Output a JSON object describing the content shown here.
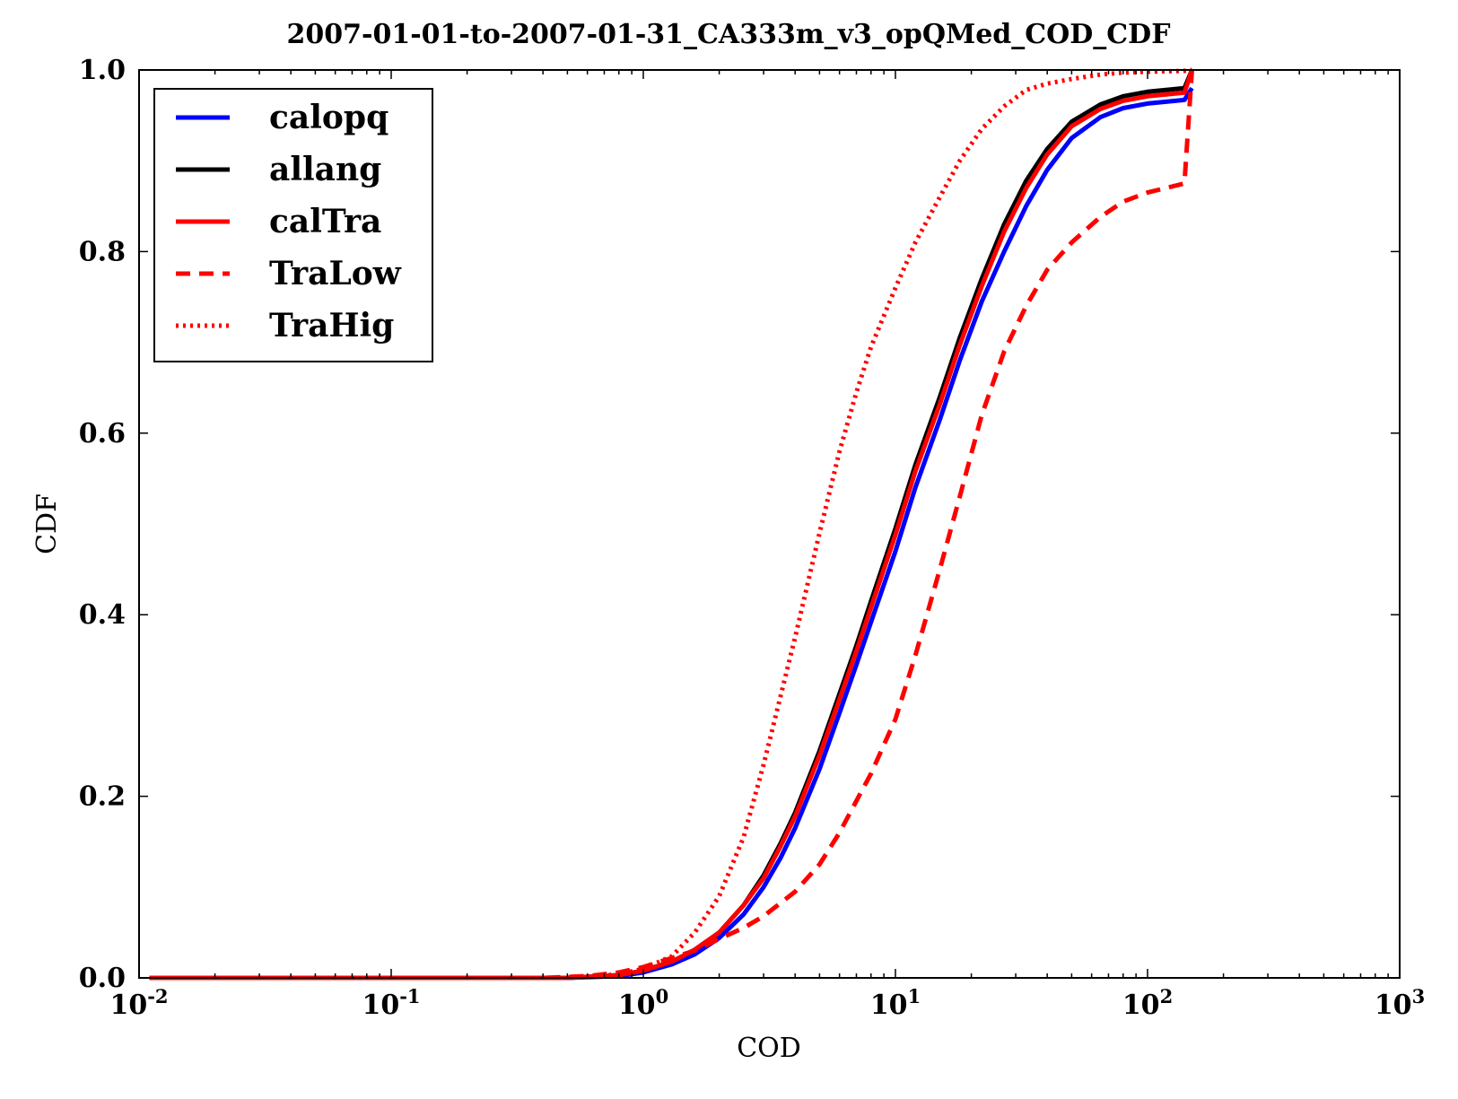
{
  "chart_data": {
    "type": "line",
    "title": "2007-01-01-to-2007-01-31_CA333m_v3_opQMed_COD_CDF",
    "xlabel": "COD",
    "ylabel": "CDF",
    "xscale": "log",
    "xlim": [
      0.01,
      1000
    ],
    "ylim": [
      0.0,
      1.0
    ],
    "x_ticks": [
      {
        "base": "10",
        "exp": "-2",
        "value": 0.01
      },
      {
        "base": "10",
        "exp": "-1",
        "value": 0.1
      },
      {
        "base": "10",
        "exp": "0",
        "value": 1
      },
      {
        "base": "10",
        "exp": "1",
        "value": 10
      },
      {
        "base": "10",
        "exp": "2",
        "value": 100
      },
      {
        "base": "10",
        "exp": "3",
        "value": 1000
      }
    ],
    "y_ticks": [
      "0.0",
      "0.2",
      "0.4",
      "0.6",
      "0.8",
      "1.0"
    ],
    "grid": false,
    "legend_position": "top-left",
    "series": [
      {
        "name": "calopq",
        "color": "#0000ff",
        "style": "solid",
        "points": [
          [
            0.011,
            0
          ],
          [
            0.5,
            0
          ],
          [
            0.8,
            0.002
          ],
          [
            1.0,
            0.006
          ],
          [
            1.3,
            0.015
          ],
          [
            1.6,
            0.026
          ],
          [
            2.0,
            0.044
          ],
          [
            2.5,
            0.07
          ],
          [
            3.0,
            0.1
          ],
          [
            3.5,
            0.132
          ],
          [
            4.0,
            0.165
          ],
          [
            5.0,
            0.23
          ],
          [
            6.0,
            0.292
          ],
          [
            7.0,
            0.345
          ],
          [
            8.0,
            0.392
          ],
          [
            10,
            0.47
          ],
          [
            12,
            0.54
          ],
          [
            15,
            0.615
          ],
          [
            18,
            0.68
          ],
          [
            22,
            0.745
          ],
          [
            27,
            0.8
          ],
          [
            33,
            0.85
          ],
          [
            40,
            0.89
          ],
          [
            50,
            0.925
          ],
          [
            65,
            0.948
          ],
          [
            80,
            0.958
          ],
          [
            100,
            0.963
          ],
          [
            140,
            0.967
          ],
          [
            150,
            0.98
          ]
        ]
      },
      {
        "name": "allang",
        "color": "#000000",
        "style": "solid",
        "points": [
          [
            0.011,
            0
          ],
          [
            0.5,
            0
          ],
          [
            0.8,
            0.003
          ],
          [
            1.0,
            0.008
          ],
          [
            1.3,
            0.018
          ],
          [
            1.6,
            0.031
          ],
          [
            2.0,
            0.05
          ],
          [
            2.5,
            0.08
          ],
          [
            3.0,
            0.113
          ],
          [
            3.5,
            0.148
          ],
          [
            4.0,
            0.182
          ],
          [
            5.0,
            0.25
          ],
          [
            6.0,
            0.313
          ],
          [
            7.0,
            0.366
          ],
          [
            8.0,
            0.415
          ],
          [
            10,
            0.495
          ],
          [
            12,
            0.565
          ],
          [
            15,
            0.64
          ],
          [
            18,
            0.705
          ],
          [
            22,
            0.77
          ],
          [
            27,
            0.83
          ],
          [
            33,
            0.878
          ],
          [
            40,
            0.913
          ],
          [
            50,
            0.943
          ],
          [
            65,
            0.962
          ],
          [
            80,
            0.971
          ],
          [
            100,
            0.976
          ],
          [
            140,
            0.98
          ],
          [
            150,
            1.0
          ]
        ]
      },
      {
        "name": "calTra",
        "color": "#ff0000",
        "style": "solid",
        "points": [
          [
            0.011,
            0
          ],
          [
            0.5,
            0
          ],
          [
            0.8,
            0.003
          ],
          [
            1.0,
            0.008
          ],
          [
            1.3,
            0.018
          ],
          [
            1.6,
            0.031
          ],
          [
            2.0,
            0.05
          ],
          [
            2.5,
            0.08
          ],
          [
            3.0,
            0.11
          ],
          [
            3.5,
            0.145
          ],
          [
            4.0,
            0.178
          ],
          [
            5.0,
            0.245
          ],
          [
            6.0,
            0.307
          ],
          [
            7.0,
            0.36
          ],
          [
            8.0,
            0.408
          ],
          [
            10,
            0.488
          ],
          [
            12,
            0.558
          ],
          [
            15,
            0.632
          ],
          [
            18,
            0.697
          ],
          [
            22,
            0.762
          ],
          [
            27,
            0.822
          ],
          [
            33,
            0.87
          ],
          [
            40,
            0.907
          ],
          [
            50,
            0.938
          ],
          [
            65,
            0.957
          ],
          [
            80,
            0.966
          ],
          [
            100,
            0.971
          ],
          [
            140,
            0.975
          ],
          [
            150,
            1.0
          ]
        ]
      },
      {
        "name": "TraLow",
        "color": "#ff0000",
        "style": "dashed",
        "points": [
          [
            0.011,
            0
          ],
          [
            0.4,
            0
          ],
          [
            0.6,
            0.002
          ],
          [
            0.8,
            0.006
          ],
          [
            1.0,
            0.012
          ],
          [
            1.3,
            0.022
          ],
          [
            1.6,
            0.03
          ],
          [
            2.0,
            0.043
          ],
          [
            2.5,
            0.055
          ],
          [
            3.0,
            0.068
          ],
          [
            4.0,
            0.095
          ],
          [
            5.0,
            0.125
          ],
          [
            6.0,
            0.16
          ],
          [
            7.0,
            0.195
          ],
          [
            8.0,
            0.225
          ],
          [
            10,
            0.285
          ],
          [
            12,
            0.355
          ],
          [
            15,
            0.45
          ],
          [
            18,
            0.53
          ],
          [
            22,
            0.62
          ],
          [
            27,
            0.69
          ],
          [
            33,
            0.74
          ],
          [
            40,
            0.78
          ],
          [
            50,
            0.81
          ],
          [
            65,
            0.838
          ],
          [
            80,
            0.855
          ],
          [
            100,
            0.865
          ],
          [
            140,
            0.875
          ],
          [
            150,
            1.0
          ]
        ]
      },
      {
        "name": "TraHig",
        "color": "#ff0000",
        "style": "dotted",
        "points": [
          [
            0.011,
            0
          ],
          [
            0.5,
            0
          ],
          [
            0.8,
            0.004
          ],
          [
            1.0,
            0.01
          ],
          [
            1.3,
            0.024
          ],
          [
            1.6,
            0.05
          ],
          [
            2.0,
            0.09
          ],
          [
            2.5,
            0.155
          ],
          [
            3.0,
            0.235
          ],
          [
            3.5,
            0.31
          ],
          [
            4.0,
            0.375
          ],
          [
            5.0,
            0.49
          ],
          [
            6.0,
            0.58
          ],
          [
            7.0,
            0.645
          ],
          [
            8.0,
            0.695
          ],
          [
            10,
            0.76
          ],
          [
            12,
            0.81
          ],
          [
            15,
            0.86
          ],
          [
            18,
            0.9
          ],
          [
            22,
            0.935
          ],
          [
            27,
            0.96
          ],
          [
            33,
            0.978
          ],
          [
            40,
            0.985
          ],
          [
            50,
            0.99
          ],
          [
            65,
            0.995
          ],
          [
            80,
            0.997
          ],
          [
            100,
            0.998
          ],
          [
            140,
            0.999
          ],
          [
            150,
            1.0
          ]
        ]
      }
    ]
  }
}
